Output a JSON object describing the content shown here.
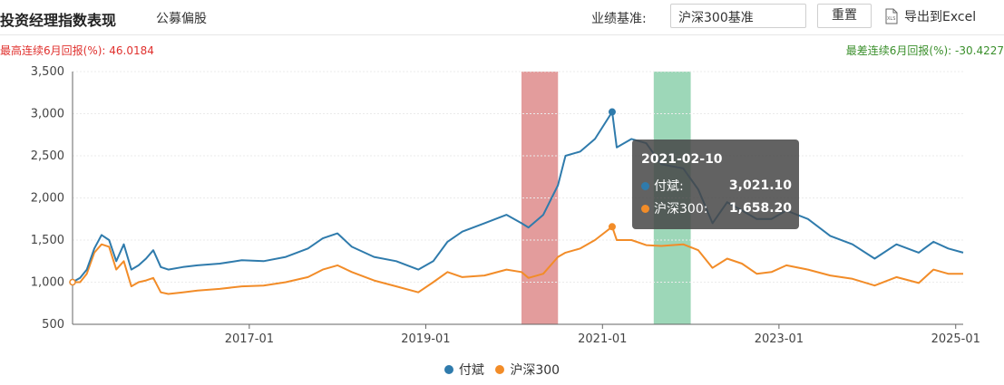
{
  "header": {
    "title": "投资经理指数表现",
    "subtitle": "公募偏股",
    "benchmark_label": "业绩基准:",
    "benchmark_value": "沪深300基准",
    "reset_label": "重置",
    "export_label": "导出到Excel",
    "export_icon": "xls-file-icon"
  },
  "stats": {
    "best": "最高连续6月回报(%): 46.0184",
    "worst": "最差连续6月回报(%): -30.4227"
  },
  "tooltip": {
    "date": "2021-02-10",
    "rows": [
      {
        "name": "付斌:",
        "value": "3,021.10"
      },
      {
        "name": "沪深300:",
        "value": "1,658.20"
      }
    ]
  },
  "colors": {
    "series1": "#2f7bac",
    "series2": "#f28c28",
    "band_red": "#d97b7b",
    "band_green": "#7cc9a0",
    "best_text": "#e0312e",
    "worst_text": "#3a8f2b"
  },
  "chart_data": {
    "type": "line",
    "title": "",
    "ylim": [
      500,
      3500
    ],
    "yticks": [
      500,
      1000,
      1500,
      2000,
      2500,
      3000,
      3500
    ],
    "ytick_labels": [
      "500",
      "1,000",
      "1,500",
      "2,000",
      "2,500",
      "3,000",
      "3,500"
    ],
    "xlim": [
      "2015-01-01",
      "2025-02-01"
    ],
    "xtick_labels": [
      "2017-01",
      "2019-01",
      "2021-01",
      "2023-01",
      "2025-01"
    ],
    "x_tick_dates": [
      "2017-01-01",
      "2019-01-01",
      "2021-01-01",
      "2023-01-01",
      "2025-01-01"
    ],
    "grid": true,
    "legend_position": "bottom",
    "highlight_bands": [
      {
        "color": "red",
        "from": "2020-02-01",
        "to": "2020-07-01"
      },
      {
        "color": "green",
        "from": "2021-08-01",
        "to": "2022-01-01"
      }
    ],
    "hover_point": {
      "date": "2021-02-10",
      "series": "付斌",
      "value": 3021.1
    },
    "series": [
      {
        "name": "付斌",
        "points": [
          [
            "2015-01-01",
            1000
          ],
          [
            "2015-02-01",
            1050
          ],
          [
            "2015-03-01",
            1150
          ],
          [
            "2015-04-01",
            1400
          ],
          [
            "2015-05-01",
            1560
          ],
          [
            "2015-06-01",
            1500
          ],
          [
            "2015-07-01",
            1250
          ],
          [
            "2015-08-01",
            1450
          ],
          [
            "2015-09-01",
            1150
          ],
          [
            "2015-10-01",
            1200
          ],
          [
            "2015-11-01",
            1280
          ],
          [
            "2015-12-01",
            1380
          ],
          [
            "2016-01-01",
            1180
          ],
          [
            "2016-02-01",
            1150
          ],
          [
            "2016-04-01",
            1180
          ],
          [
            "2016-06-01",
            1200
          ],
          [
            "2016-09-01",
            1220
          ],
          [
            "2016-12-01",
            1260
          ],
          [
            "2017-03-01",
            1250
          ],
          [
            "2017-06-01",
            1300
          ],
          [
            "2017-09-01",
            1400
          ],
          [
            "2017-11-01",
            1520
          ],
          [
            "2018-01-01",
            1580
          ],
          [
            "2018-03-01",
            1420
          ],
          [
            "2018-06-01",
            1300
          ],
          [
            "2018-09-01",
            1250
          ],
          [
            "2018-12-01",
            1150
          ],
          [
            "2019-02-01",
            1250
          ],
          [
            "2019-04-01",
            1480
          ],
          [
            "2019-06-01",
            1600
          ],
          [
            "2019-09-01",
            1700
          ],
          [
            "2019-12-01",
            1800
          ],
          [
            "2020-02-01",
            1700
          ],
          [
            "2020-03-01",
            1650
          ],
          [
            "2020-05-01",
            1800
          ],
          [
            "2020-07-01",
            2150
          ],
          [
            "2020-08-01",
            2500
          ],
          [
            "2020-10-01",
            2550
          ],
          [
            "2020-12-01",
            2700
          ],
          [
            "2021-02-10",
            3021.1
          ],
          [
            "2021-03-01",
            2600
          ],
          [
            "2021-05-01",
            2700
          ],
          [
            "2021-07-01",
            2650
          ],
          [
            "2021-09-01",
            2400
          ],
          [
            "2021-12-01",
            2350
          ],
          [
            "2022-02-01",
            2100
          ],
          [
            "2022-04-01",
            1700
          ],
          [
            "2022-06-01",
            1950
          ],
          [
            "2022-08-01",
            1850
          ],
          [
            "2022-10-01",
            1750
          ],
          [
            "2022-12-01",
            1750
          ],
          [
            "2023-02-01",
            1850
          ],
          [
            "2023-05-01",
            1750
          ],
          [
            "2023-08-01",
            1550
          ],
          [
            "2023-11-01",
            1450
          ],
          [
            "2024-02-01",
            1280
          ],
          [
            "2024-05-01",
            1450
          ],
          [
            "2024-08-01",
            1350
          ],
          [
            "2024-10-01",
            1480
          ],
          [
            "2024-12-01",
            1400
          ],
          [
            "2025-02-01",
            1350
          ]
        ]
      },
      {
        "name": "沪深300",
        "points": [
          [
            "2015-01-01",
            1000
          ],
          [
            "2015-02-01",
            1000
          ],
          [
            "2015-03-01",
            1100
          ],
          [
            "2015-04-01",
            1350
          ],
          [
            "2015-05-01",
            1450
          ],
          [
            "2015-06-01",
            1420
          ],
          [
            "2015-07-01",
            1150
          ],
          [
            "2015-08-01",
            1250
          ],
          [
            "2015-09-01",
            950
          ],
          [
            "2015-10-01",
            1000
          ],
          [
            "2015-11-01",
            1020
          ],
          [
            "2015-12-01",
            1050
          ],
          [
            "2016-01-01",
            880
          ],
          [
            "2016-02-01",
            860
          ],
          [
            "2016-04-01",
            880
          ],
          [
            "2016-06-01",
            900
          ],
          [
            "2016-09-01",
            920
          ],
          [
            "2016-12-01",
            950
          ],
          [
            "2017-03-01",
            960
          ],
          [
            "2017-06-01",
            1000
          ],
          [
            "2017-09-01",
            1060
          ],
          [
            "2017-11-01",
            1150
          ],
          [
            "2018-01-01",
            1200
          ],
          [
            "2018-03-01",
            1120
          ],
          [
            "2018-06-01",
            1020
          ],
          [
            "2018-09-01",
            950
          ],
          [
            "2018-12-01",
            880
          ],
          [
            "2019-02-01",
            1000
          ],
          [
            "2019-04-01",
            1120
          ],
          [
            "2019-06-01",
            1060
          ],
          [
            "2019-09-01",
            1080
          ],
          [
            "2019-12-01",
            1150
          ],
          [
            "2020-02-01",
            1120
          ],
          [
            "2020-03-01",
            1050
          ],
          [
            "2020-05-01",
            1100
          ],
          [
            "2020-07-01",
            1300
          ],
          [
            "2020-08-01",
            1350
          ],
          [
            "2020-10-01",
            1400
          ],
          [
            "2020-12-01",
            1500
          ],
          [
            "2021-02-10",
            1658.2
          ],
          [
            "2021-03-01",
            1500
          ],
          [
            "2021-05-01",
            1500
          ],
          [
            "2021-07-01",
            1440
          ],
          [
            "2021-09-01",
            1430
          ],
          [
            "2021-12-01",
            1450
          ],
          [
            "2022-02-01",
            1380
          ],
          [
            "2022-04-01",
            1170
          ],
          [
            "2022-06-01",
            1280
          ],
          [
            "2022-08-01",
            1220
          ],
          [
            "2022-10-01",
            1100
          ],
          [
            "2022-12-01",
            1120
          ],
          [
            "2023-02-01",
            1200
          ],
          [
            "2023-05-01",
            1150
          ],
          [
            "2023-08-01",
            1080
          ],
          [
            "2023-11-01",
            1040
          ],
          [
            "2024-02-01",
            960
          ],
          [
            "2024-05-01",
            1060
          ],
          [
            "2024-08-01",
            990
          ],
          [
            "2024-10-01",
            1150
          ],
          [
            "2024-12-01",
            1100
          ],
          [
            "2025-02-01",
            1100
          ]
        ]
      }
    ]
  }
}
